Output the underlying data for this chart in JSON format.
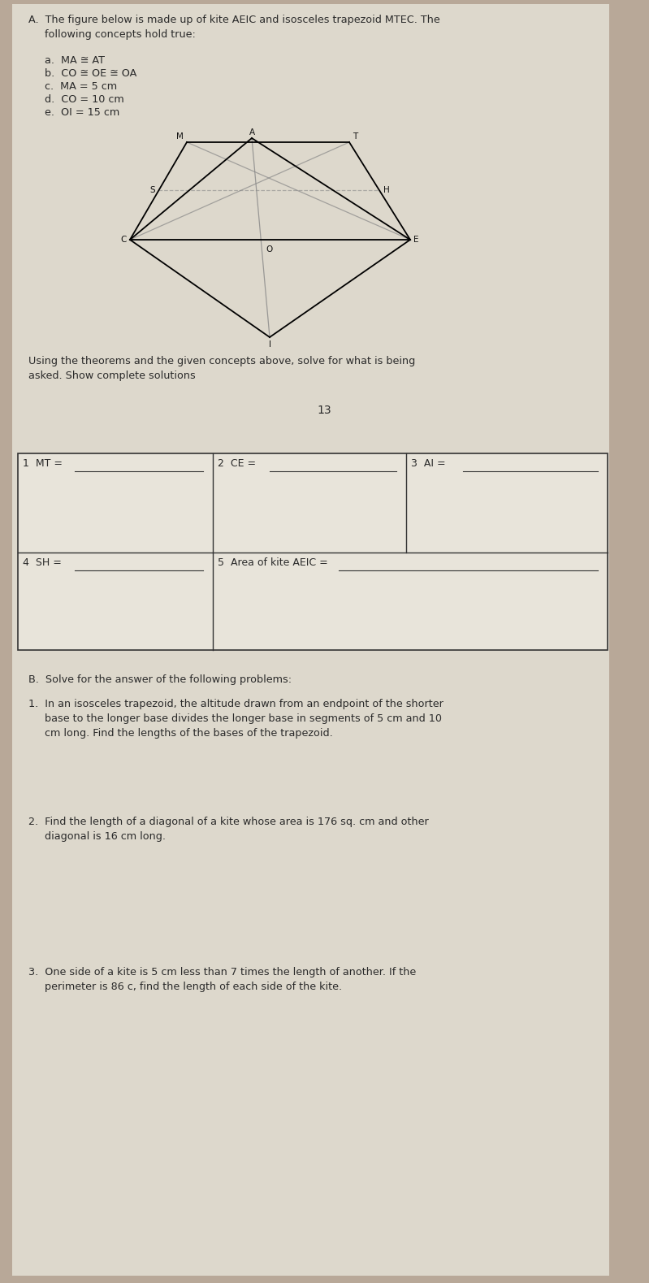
{
  "bg_color": "#b8a898",
  "paper_color": "#ddd8cc",
  "title_A": "A.  The figure below is made up of kite AEIC and isosceles trapezoid MTEC. The\n     following concepts hold true:",
  "concepts": [
    "a.  MA ≅ AT",
    "b.  CO ≅ OE ≅ OA",
    "c.  MA = 5 cm",
    "d.  CO = 10 cm",
    "e.  OI = 15 cm"
  ],
  "concept_overlines": [
    [
      [
        "MA",
        "AT"
      ],
      []
    ],
    [
      [
        "CO",
        "OE",
        "OA"
      ],
      []
    ],
    [
      [
        "MA"
      ],
      []
    ],
    [
      [
        "CO"
      ],
      []
    ],
    [
      [
        "OI"
      ],
      []
    ]
  ],
  "instruction": "Using the theorems and the given concepts above, solve for what is being\nasked. Show complete solutions",
  "page_number": "13",
  "table_label1": "1  MT =",
  "table_label2": "2  CE =",
  "table_label3": "3  AI =",
  "table_label4": "4  SH =",
  "table_label5": "5  Area of kite AEIC =",
  "section_B": "B.  Solve for the answer of the following problems:",
  "problem1": "1.  In an isosceles trapezoid, the altitude drawn from an endpoint of the shorter\n     base to the longer base divides the longer base in segments of 5 cm and 10\n     cm long. Find the lengths of the bases of the trapezoid.",
  "problem2": "2.  Find the length of a diagonal of a kite whose area is 176 sq. cm and other\n     diagonal is 16 cm long.",
  "problem3": "3.  One side of a kite is 5 cm less than 7 times the length of another. If the\n     perimeter is 86 c, find the length of each side of the kite."
}
